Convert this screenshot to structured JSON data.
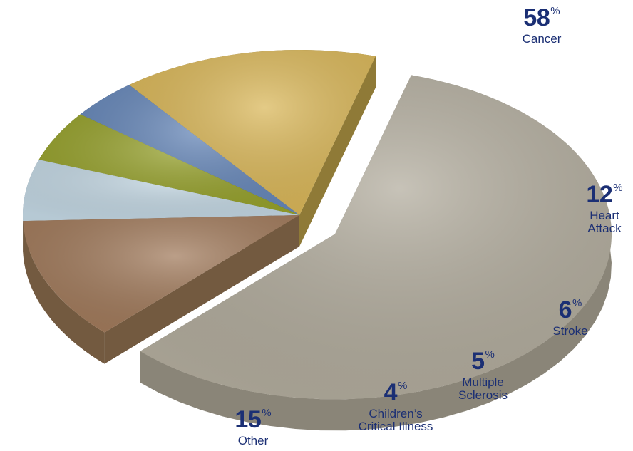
{
  "chart_data": {
    "type": "pie",
    "percent_symbol": "%",
    "title": "",
    "slices": [
      {
        "label": "Cancer",
        "value": 58,
        "color": "#b1ab9c",
        "side_color": "#8a8578"
      },
      {
        "label": "Heart Attack",
        "value": 12,
        "color": "#a0795a",
        "side_color": "#735a40"
      },
      {
        "label": "Stroke",
        "value": 6,
        "color": "#c2d6e2",
        "side_color": "#8798a3"
      },
      {
        "label": "Multiple Sclerosis",
        "value": 5,
        "color": "#95a02a",
        "side_color": "#6b7316"
      },
      {
        "label": "Children’s Critical Illness",
        "value": 4,
        "color": "#6586b8",
        "side_color": "#425a82"
      },
      {
        "label": "Other",
        "value": 15,
        "color": "#d9b657",
        "side_color": "#8f7a37"
      }
    ],
    "labels_display": [
      {
        "num": "58",
        "text": "Cancer"
      },
      {
        "num": "12",
        "text": "Heart\nAttack"
      },
      {
        "num": "6",
        "text": "Stroke"
      },
      {
        "num": "5",
        "text": "Multiple\nSclerosis"
      },
      {
        "num": "4",
        "text": "Children’s\nCritical Illness"
      },
      {
        "num": "15",
        "text": "Other"
      }
    ],
    "exploded": "Cancer",
    "legend": "none"
  }
}
